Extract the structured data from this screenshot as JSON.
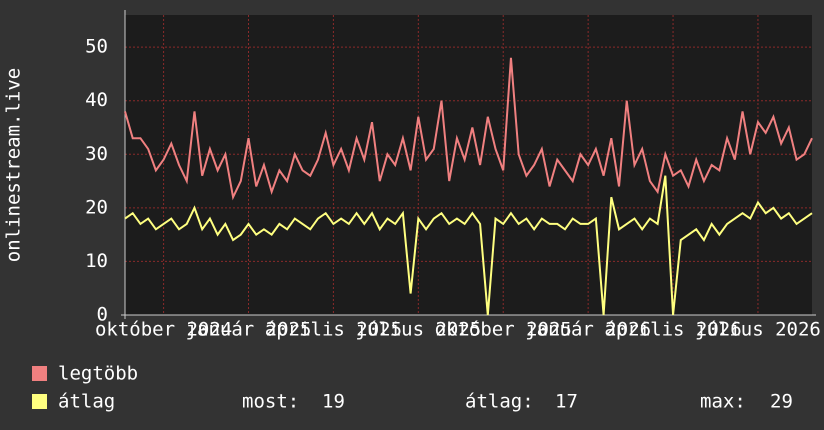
{
  "chart_data": {
    "type": "line",
    "y_label": "onlinestream.live",
    "ylim": [
      0,
      56
    ],
    "yticks": [
      0,
      10,
      20,
      30,
      40,
      50
    ],
    "xlim": [
      0,
      89
    ],
    "xticks": [
      {
        "value": 5,
        "label": "október 2024"
      },
      {
        "value": 16,
        "label": "január 2025"
      },
      {
        "value": 27,
        "label": "április 2025"
      },
      {
        "value": 38,
        "label": "július 2025"
      },
      {
        "value": 49,
        "label": "október 2025"
      },
      {
        "value": 60,
        "label": "január 2026"
      },
      {
        "value": 71,
        "label": "április 2026"
      },
      {
        "value": 82,
        "label": "július 2026"
      }
    ],
    "grid": true,
    "series": [
      {
        "name": "legtöbb",
        "color": "#f08080",
        "values": [
          38,
          33,
          33,
          31,
          27,
          29,
          32,
          28,
          25,
          38,
          26,
          31,
          27,
          30,
          22,
          25,
          33,
          24,
          28,
          23,
          27,
          25,
          30,
          27,
          26,
          29,
          34,
          28,
          31,
          27,
          33,
          29,
          36,
          25,
          30,
          28,
          33,
          27,
          37,
          29,
          31,
          40,
          25,
          33,
          29,
          35,
          28,
          37,
          31,
          27,
          48,
          30,
          26,
          28,
          31,
          24,
          29,
          27,
          25,
          30,
          28,
          31,
          26,
          33,
          24,
          40,
          28,
          31,
          25,
          23,
          30,
          26,
          27,
          24,
          29,
          25,
          28,
          27,
          33,
          29,
          38,
          30,
          36,
          34,
          37,
          32,
          35,
          29,
          30,
          33
        ]
      },
      {
        "name": "átlag",
        "color": "#ffff80",
        "values": [
          18,
          19,
          17,
          18,
          16,
          17,
          18,
          16,
          17,
          20,
          16,
          18,
          15,
          17,
          14,
          15,
          17,
          15,
          16,
          15,
          17,
          16,
          18,
          17,
          16,
          18,
          19,
          17,
          18,
          17,
          19,
          17,
          19,
          16,
          18,
          17,
          19,
          4,
          18,
          16,
          18,
          19,
          17,
          18,
          17,
          19,
          17,
          0,
          18,
          17,
          19,
          17,
          18,
          16,
          18,
          17,
          17,
          16,
          18,
          17,
          17,
          18,
          0,
          22,
          16,
          17,
          18,
          16,
          18,
          17,
          26,
          0,
          14,
          15,
          16,
          14,
          17,
          15,
          17,
          18,
          19,
          18,
          21,
          19,
          20,
          18,
          19,
          17,
          18,
          19
        ]
      }
    ],
    "stats": [
      {
        "label": "most:",
        "value": 19
      },
      {
        "label": "átlag:",
        "value": 17
      },
      {
        "label": "max:",
        "value": 29
      }
    ]
  }
}
